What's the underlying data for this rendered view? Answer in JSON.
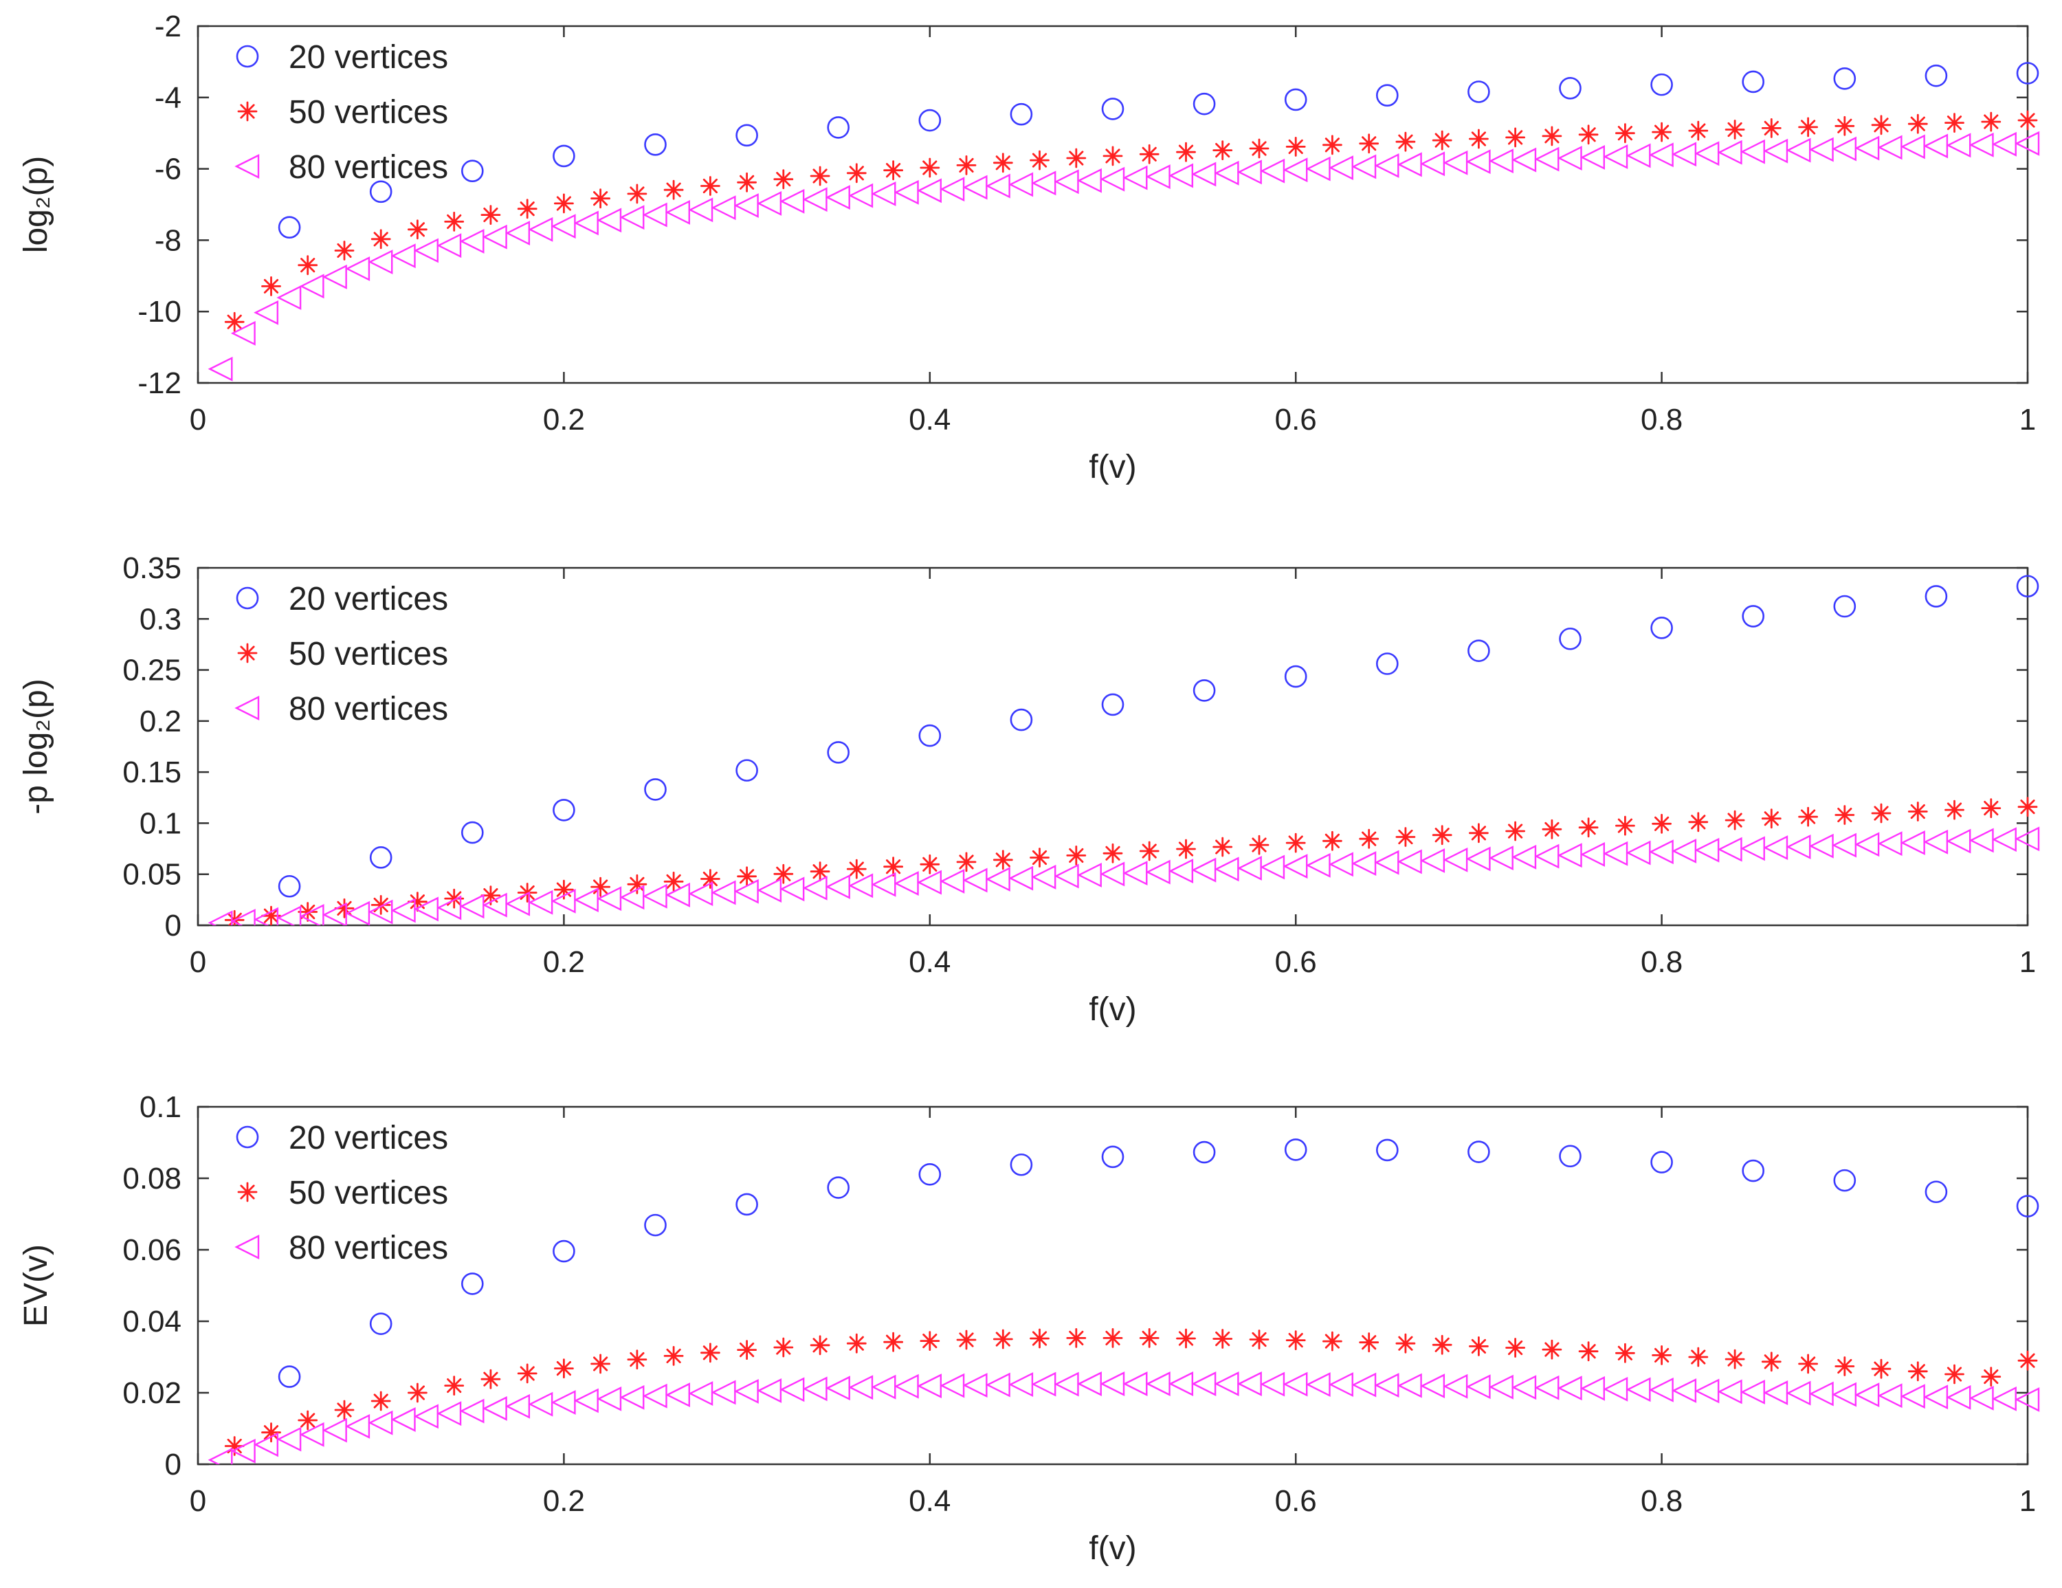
{
  "colors": {
    "series_20": "#3a3aff",
    "series_50": "#ff2020",
    "series_80": "#ff33ff"
  },
  "chart_data": [
    {
      "type": "scatter",
      "xlabel": "f(v)",
      "ylabel": "log₂(p)",
      "xlim": [
        0,
        1
      ],
      "ylim": [
        -12,
        -2
      ],
      "xticks": [
        0,
        0.2,
        0.4,
        0.6,
        0.8,
        1
      ],
      "xtick_labels": [
        "0",
        "0.2",
        "0.4",
        "0.6",
        "0.8",
        "1"
      ],
      "yticks": [
        -12,
        -10,
        -8,
        -6,
        -4,
        -2
      ],
      "ytick_labels": [
        "-12",
        "-10",
        "-8",
        "-6",
        "-4",
        "-2"
      ],
      "legend": [
        "20 vertices",
        "50 vertices",
        "80 vertices"
      ],
      "legend_position": "top-left",
      "series": [
        {
          "name": "20 vertices",
          "marker": "circle",
          "x_start": 0.05,
          "x_step": 0.05,
          "n": 20,
          "values": [
            -7.64,
            -6.64,
            -6.06,
            -5.64,
            -5.32,
            -5.06,
            -4.84,
            -4.64,
            -4.47,
            -4.32,
            -4.18,
            -4.06,
            -3.94,
            -3.84,
            -3.74,
            -3.64,
            -3.56,
            -3.47,
            -3.39,
            -3.32
          ]
        },
        {
          "name": "50 vertices",
          "marker": "asterisk",
          "x_start": 0.02,
          "x_step": 0.02,
          "n": 50,
          "values": [
            -10.29,
            -9.29,
            -8.7,
            -8.29,
            -7.97,
            -7.7,
            -7.48,
            -7.29,
            -7.12,
            -6.97,
            -6.83,
            -6.7,
            -6.59,
            -6.48,
            -6.38,
            -6.29,
            -6.2,
            -6.12,
            -6.04,
            -5.97,
            -5.9,
            -5.83,
            -5.76,
            -5.7,
            -5.64,
            -5.59,
            -5.53,
            -5.48,
            -5.43,
            -5.38,
            -5.33,
            -5.29,
            -5.24,
            -5.2,
            -5.16,
            -5.12,
            -5.08,
            -5.04,
            -5.0,
            -4.97,
            -4.93,
            -4.9,
            -4.86,
            -4.83,
            -4.8,
            -4.77,
            -4.74,
            -4.71,
            -4.68,
            -4.64
          ]
        },
        {
          "name": "80 vertices",
          "marker": "triangle-left",
          "x_start": 0.0125,
          "x_step": 0.0125,
          "n": 80,
          "values": [
            -11.61,
            -10.61,
            -10.03,
            -9.61,
            -9.29,
            -9.03,
            -8.8,
            -8.61,
            -8.44,
            -8.29,
            -8.15,
            -8.03,
            -7.91,
            -7.8,
            -7.7,
            -7.61,
            -7.52,
            -7.44,
            -7.36,
            -7.29,
            -7.22,
            -7.15,
            -7.09,
            -7.03,
            -6.97,
            -6.91,
            -6.86,
            -6.8,
            -6.75,
            -6.7,
            -6.66,
            -6.61,
            -6.57,
            -6.52,
            -6.48,
            -6.44,
            -6.4,
            -6.36,
            -6.33,
            -6.29,
            -6.25,
            -6.22,
            -6.19,
            -6.15,
            -6.12,
            -6.09,
            -6.06,
            -6.03,
            -6.0,
            -5.97,
            -5.94,
            -5.91,
            -5.88,
            -5.86,
            -5.83,
            -5.8,
            -5.78,
            -5.75,
            -5.73,
            -5.7,
            -5.68,
            -5.66,
            -5.63,
            -5.61,
            -5.59,
            -5.57,
            -5.54,
            -5.52,
            -5.5,
            -5.48,
            -5.46,
            -5.44,
            -5.42,
            -5.4,
            -5.38,
            -5.36,
            -5.34,
            -5.33,
            -5.31,
            -5.29
          ]
        }
      ]
    },
    {
      "type": "scatter",
      "xlabel": "f(v)",
      "ylabel": "-p log₂(p)",
      "xlim": [
        0,
        1
      ],
      "ylim": [
        0,
        0.35
      ],
      "xticks": [
        0,
        0.2,
        0.4,
        0.6,
        0.8,
        1
      ],
      "xtick_labels": [
        "0",
        "0.2",
        "0.4",
        "0.6",
        "0.8",
        "1"
      ],
      "yticks": [
        0,
        0.05,
        0.1,
        0.15,
        0.2,
        0.25,
        0.3,
        0.35
      ],
      "ytick_labels": [
        "0",
        "0.05",
        "0.1",
        "0.15",
        "0.2",
        "0.25",
        "0.3",
        "0.35"
      ],
      "legend": [
        "20 vertices",
        "50 vertices",
        "80 vertices"
      ],
      "legend_position": "top-left",
      "series": [
        {
          "name": "20 vertices",
          "marker": "circle",
          "x_start": 0.05,
          "x_step": 0.05,
          "n": 20,
          "values": [
            0.0382,
            0.0664,
            0.0908,
            0.1128,
            0.133,
            0.1517,
            0.1693,
            0.1857,
            0.2012,
            0.2161,
            0.2299,
            0.2436,
            0.2561,
            0.2688,
            0.2805,
            0.2912,
            0.3026,
            0.3123,
            0.3221,
            0.332
          ]
        },
        {
          "name": "50 vertices",
          "marker": "asterisk",
          "x_start": 0.02,
          "x_step": 0.02,
          "n": 50,
          "values": [
            0.0052,
            0.0093,
            0.0131,
            0.0166,
            0.0199,
            0.0231,
            0.0262,
            0.0292,
            0.032,
            0.0349,
            0.0376,
            0.0402,
            0.0428,
            0.0454,
            0.0479,
            0.0503,
            0.0527,
            0.0551,
            0.0574,
            0.0597,
            0.062,
            0.0641,
            0.0663,
            0.0684,
            0.0705,
            0.0727,
            0.0747,
            0.0767,
            0.0787,
            0.0807,
            0.0826,
            0.0847,
            0.0865,
            0.0884,
            0.0903,
            0.0922,
            0.094,
            0.0958,
            0.0975,
            0.0994,
            0.1011,
            0.1029,
            0.1045,
            0.1063,
            0.108,
            0.1097,
            0.1114,
            0.113,
            0.1147,
            0.116
          ]
        },
        {
          "name": "80 vertices",
          "marker": "triangle-left",
          "x_start": 0.0125,
          "x_step": 0.0125,
          "n": 80,
          "values": [
            0.0025,
            0.0041,
            0.0057,
            0.0073,
            0.0088,
            0.0103,
            0.0117,
            0.0131,
            0.0145,
            0.0159,
            0.0172,
            0.0186,
            0.0198,
            0.0211,
            0.0224,
            0.0237,
            0.0249,
            0.0261,
            0.0274,
            0.0285,
            0.0297,
            0.0309,
            0.032,
            0.0332,
            0.0343,
            0.0355,
            0.0365,
            0.0377,
            0.0388,
            0.0399,
            0.041,
            0.042,
            0.0431,
            0.0441,
            0.0451,
            0.0461,
            0.0472,
            0.0482,
            0.0492,
            0.0502,
            0.0511,
            0.0521,
            0.0531,
            0.0541,
            0.055,
            0.0559,
            0.0569,
            0.0578,
            0.0587,
            0.0597,
            0.0605,
            0.0615,
            0.0623,
            0.0633,
            0.0641,
            0.065,
            0.0659,
            0.0668,
            0.0676,
            0.0685,
            0.0694,
            0.0702,
            0.071,
            0.0719,
            0.0727,
            0.0736,
            0.0743,
            0.0752,
            0.076,
            0.0768,
            0.0776,
            0.0784,
            0.0792,
            0.08,
            0.0808,
            0.0816,
            0.0824,
            0.0832,
            0.084,
            0.0846
          ]
        }
      ]
    },
    {
      "type": "scatter",
      "xlabel": "f(v)",
      "ylabel": "EV(v)",
      "xlim": [
        0,
        1
      ],
      "ylim": [
        0,
        0.1
      ],
      "xticks": [
        0,
        0.2,
        0.4,
        0.6,
        0.8,
        1
      ],
      "xtick_labels": [
        "0",
        "0.2",
        "0.4",
        "0.6",
        "0.8",
        "1"
      ],
      "yticks": [
        0,
        0.02,
        0.04,
        0.06,
        0.08,
        0.1
      ],
      "ytick_labels": [
        "0",
        "0.02",
        "0.04",
        "0.06",
        "0.08",
        "0.1"
      ],
      "legend": [
        "20 vertices",
        "50 vertices",
        "80 vertices"
      ],
      "legend_position": "top-left",
      "series": [
        {
          "name": "20 vertices",
          "marker": "circle",
          "x_start": 0.05,
          "x_step": 0.05,
          "n": 20,
          "values": [
            0.0245,
            0.0393,
            0.0505,
            0.0596,
            0.0669,
            0.0727,
            0.0774,
            0.0811,
            0.0838,
            0.086,
            0.0873,
            0.088,
            0.0879,
            0.0874,
            0.0862,
            0.0845,
            0.0821,
            0.0794,
            0.0762,
            0.0722
          ]
        },
        {
          "name": "50 vertices",
          "marker": "asterisk",
          "x_start": 0.02,
          "x_step": 0.02,
          "n": 50,
          "values": [
            0.0051,
            0.0089,
            0.0123,
            0.0152,
            0.0177,
            0.02,
            0.022,
            0.0238,
            0.0254,
            0.0268,
            0.0281,
            0.0293,
            0.0303,
            0.0312,
            0.032,
            0.0327,
            0.0333,
            0.0338,
            0.0342,
            0.0345,
            0.0348,
            0.035,
            0.0352,
            0.0353,
            0.0353,
            0.0353,
            0.0352,
            0.0351,
            0.0349,
            0.0347,
            0.0344,
            0.0341,
            0.0338,
            0.0334,
            0.033,
            0.0326,
            0.0321,
            0.0316,
            0.0311,
            0.0305,
            0.03,
            0.0294,
            0.0287,
            0.0281,
            0.0274,
            0.0267,
            0.026,
            0.0252,
            0.0245,
            0.029
          ]
        },
        {
          "name": "80 vertices",
          "marker": "triangle-left",
          "x_start": 0.0125,
          "x_step": 0.0125,
          "n": 80,
          "values": [
            0.0012,
            0.0037,
            0.0055,
            0.007,
            0.0083,
            0.0095,
            0.0106,
            0.0116,
            0.0125,
            0.0134,
            0.0142,
            0.0149,
            0.0156,
            0.0162,
            0.0168,
            0.0173,
            0.0178,
            0.0183,
            0.0187,
            0.0191,
            0.0194,
            0.0198,
            0.0201,
            0.0204,
            0.0206,
            0.0209,
            0.0211,
            0.0213,
            0.0215,
            0.0216,
            0.0218,
            0.0219,
            0.022,
            0.0221,
            0.0222,
            0.0223,
            0.0224,
            0.0224,
            0.0225,
            0.0225,
            0.0225,
            0.0225,
            0.0225,
            0.0225,
            0.0225,
            0.0225,
            0.0224,
            0.0224,
            0.0223,
            0.0223,
            0.0222,
            0.0221,
            0.022,
            0.0219,
            0.0218,
            0.0217,
            0.0216,
            0.0215,
            0.0214,
            0.0213,
            0.0212,
            0.021,
            0.0209,
            0.0208,
            0.0206,
            0.0205,
            0.0203,
            0.0202,
            0.02,
            0.0199,
            0.0197,
            0.0195,
            0.0194,
            0.0192,
            0.019,
            0.0188,
            0.0187,
            0.0185,
            0.0183,
            0.0181
          ]
        }
      ]
    }
  ]
}
